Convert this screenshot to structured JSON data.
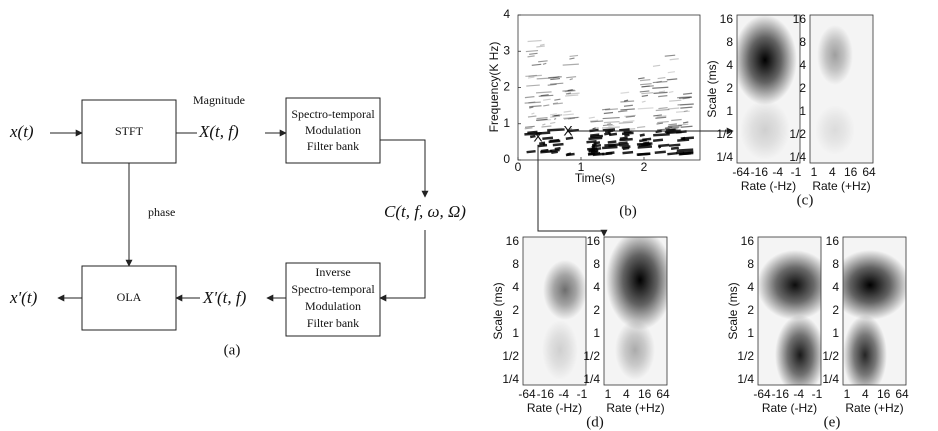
{
  "diagram": {
    "signal_in": "x(t)",
    "signal_out": "x'(t)",
    "spectrum": "X(t, f)",
    "spectrum_rec": "X'(t, f)",
    "cortical": "C(t, f, ω, Ω)",
    "magnitude": "Magnitude",
    "phase": "phase",
    "blocks": {
      "stft": "STFT",
      "ola": "OLA",
      "filter": [
        "Spectro-temporal",
        "Modulation",
        "Filter bank"
      ],
      "inverse": [
        "Inverse",
        "Spectro-temporal",
        "Modulation",
        "Filter bank"
      ]
    },
    "caption": "(a)"
  },
  "spectrogram": {
    "ylabel": "Frequency(K Hz)",
    "xlabel": "Time(s)",
    "yticks": [
      "0",
      "1",
      "2",
      "3",
      "4"
    ],
    "xticks": [
      "0",
      "1",
      "2"
    ],
    "markers": [
      "X",
      "X"
    ],
    "caption": "(b)"
  },
  "scale_rate": {
    "ylabel": "Scale (ms)",
    "yticks": [
      "16",
      "8",
      "4",
      "2",
      "1",
      "1/2",
      "1/4"
    ],
    "xlabel_neg": "Rate (-Hz)",
    "xlabel_pos": "Rate (+Hz)",
    "xticks_neg": [
      "-64",
      "-16",
      "-4",
      "-1"
    ],
    "xticks_pos": [
      "1",
      "4",
      "16",
      "64"
    ],
    "captions": [
      "(c)",
      "(d)",
      "(e)"
    ]
  }
}
